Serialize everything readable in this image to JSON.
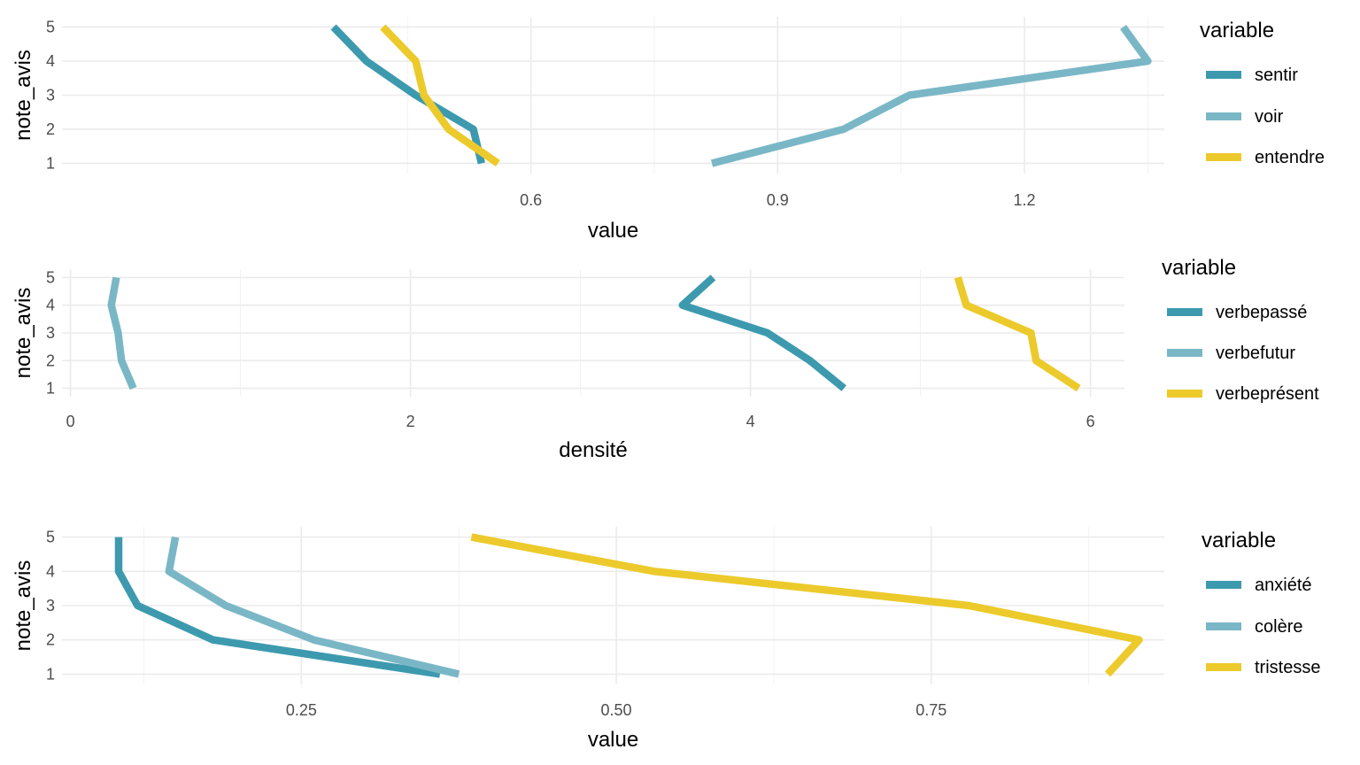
{
  "palette": {
    "sentir_like": "#3d9aae",
    "voir_like": "#7ab7c6",
    "entendre_like": "#ecca2b"
  },
  "chart_data": [
    {
      "type": "line",
      "xlabel": "value",
      "ylabel": "note_avis",
      "xlim": [
        0.03,
        1.37
      ],
      "ylim": [
        0.7,
        5.3
      ],
      "x_ticks": [
        0.6,
        0.9,
        1.2
      ],
      "x_tick_labels": [
        "0.6",
        "0.9",
        "1.2"
      ],
      "y_ticks": [
        1,
        2,
        3,
        4,
        5
      ],
      "y_tick_labels": [
        "1",
        "2",
        "3",
        "4",
        "5"
      ],
      "legend_title": "variable",
      "legend_position": "right",
      "series": [
        {
          "name": "sentir",
          "color": "#3d9aae",
          "points": [
            [
              0.54,
              1
            ],
            [
              0.53,
              2
            ],
            [
              0.46,
              3
            ],
            [
              0.4,
              4
            ],
            [
              0.36,
              5
            ]
          ]
        },
        {
          "name": "voir",
          "color": "#7ab7c6",
          "points": [
            [
              0.82,
              1
            ],
            [
              0.98,
              2
            ],
            [
              1.06,
              3
            ],
            [
              1.35,
              4
            ],
            [
              1.32,
              5
            ]
          ]
        },
        {
          "name": "entendre",
          "color": "#ecca2b",
          "points": [
            [
              0.56,
              1
            ],
            [
              0.5,
              2
            ],
            [
              0.47,
              3
            ],
            [
              0.46,
              4
            ],
            [
              0.42,
              5
            ]
          ]
        }
      ]
    },
    {
      "type": "line",
      "xlabel": "densité",
      "ylabel": "note_avis",
      "xlim": [
        -0.05,
        6.2
      ],
      "ylim": [
        0.7,
        5.3
      ],
      "x_ticks": [
        0,
        2,
        4,
        6
      ],
      "x_tick_labels": [
        "0",
        "2",
        "4",
        "6"
      ],
      "y_ticks": [
        1,
        2,
        3,
        4,
        5
      ],
      "y_tick_labels": [
        "1",
        "2",
        "3",
        "4",
        "5"
      ],
      "legend_title": "variable",
      "legend_position": "right",
      "series": [
        {
          "name": "verbepassé",
          "color": "#3d9aae",
          "points": [
            [
              4.55,
              1
            ],
            [
              4.35,
              2
            ],
            [
              4.1,
              3
            ],
            [
              3.6,
              4
            ],
            [
              3.78,
              5
            ]
          ]
        },
        {
          "name": "verbefutur",
          "color": "#7ab7c6",
          "points": [
            [
              0.37,
              1
            ],
            [
              0.3,
              2
            ],
            [
              0.28,
              3
            ],
            [
              0.24,
              4
            ],
            [
              0.27,
              5
            ]
          ]
        },
        {
          "name": "verbeprésent",
          "color": "#ecca2b",
          "points": [
            [
              5.93,
              1
            ],
            [
              5.68,
              2
            ],
            [
              5.65,
              3
            ],
            [
              5.27,
              4
            ],
            [
              5.22,
              5
            ]
          ]
        }
      ]
    },
    {
      "type": "line",
      "xlabel": "value",
      "ylabel": "note_avis",
      "xlim": [
        0.06,
        0.935
      ],
      "ylim": [
        0.7,
        5.3
      ],
      "x_ticks": [
        0.25,
        0.5,
        0.75
      ],
      "x_tick_labels": [
        "0.25",
        "0.50",
        "0.75"
      ],
      "y_ticks": [
        1,
        2,
        3,
        4,
        5
      ],
      "y_tick_labels": [
        "1",
        "2",
        "3",
        "4",
        "5"
      ],
      "legend_title": "variable",
      "legend_position": "right",
      "series": [
        {
          "name": "anxiété",
          "color": "#3d9aae",
          "points": [
            [
              0.36,
              1
            ],
            [
              0.18,
              2
            ],
            [
              0.12,
              3
            ],
            [
              0.105,
              4
            ],
            [
              0.105,
              5
            ]
          ]
        },
        {
          "name": "colère",
          "color": "#7ab7c6",
          "points": [
            [
              0.375,
              1
            ],
            [
              0.26,
              2
            ],
            [
              0.19,
              3
            ],
            [
              0.145,
              4
            ],
            [
              0.15,
              5
            ]
          ]
        },
        {
          "name": "tristesse",
          "color": "#ecca2b",
          "points": [
            [
              0.89,
              1
            ],
            [
              0.915,
              2
            ],
            [
              0.78,
              3
            ],
            [
              0.53,
              4
            ],
            [
              0.385,
              5
            ]
          ]
        }
      ]
    }
  ]
}
